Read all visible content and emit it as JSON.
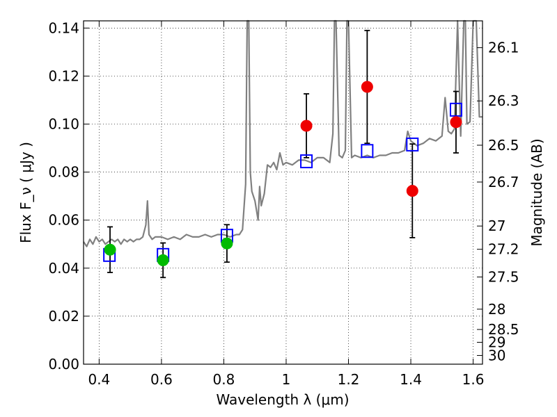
{
  "chart_data": {
    "type": "scatter",
    "title": "",
    "xlabel": "Wavelength  λ (μm)",
    "ylabel": "Flux  F_ν  ( μJy )",
    "y2label": "Magnitude (AB)",
    "xlim": [
      0.35,
      1.63
    ],
    "ylim": [
      0.0,
      0.143
    ],
    "grid": true,
    "x_ticks": [
      0.4,
      0.6,
      0.8,
      1.0,
      1.2,
      1.4,
      1.6
    ],
    "x_tick_labels": [
      "0.4",
      "0.6",
      "0.8",
      "1",
      "1.2",
      "1.4",
      "1.6"
    ],
    "y_ticks": [
      0.0,
      0.02,
      0.04,
      0.06,
      0.08,
      0.1,
      0.12,
      0.14
    ],
    "y_tick_labels": [
      "0.00",
      "0.02",
      "0.04",
      "0.06",
      "0.08",
      "0.10",
      "0.12",
      "0.14"
    ],
    "y2_tick_labels": [
      "26.1",
      "26.3",
      "26.5",
      "26.7",
      "27",
      "27.2",
      "27.5",
      "28",
      "28.5",
      "29",
      "30"
    ],
    "y2_tick_values": [
      26.1,
      26.3,
      26.5,
      26.7,
      27.0,
      27.2,
      27.5,
      28.0,
      28.5,
      29.0,
      30.0
    ],
    "colors": {
      "spectrum": "#808080",
      "model_boxes": "#0000ff",
      "detections_optical": "#00bb00",
      "detections_nir": "#ee0000",
      "errorbars": "#000000"
    },
    "series": [
      {
        "kind": "spectrum",
        "x": [
          0.35,
          0.36,
          0.37,
          0.38,
          0.39,
          0.4,
          0.41,
          0.42,
          0.43,
          0.44,
          0.45,
          0.46,
          0.47,
          0.48,
          0.49,
          0.5,
          0.51,
          0.52,
          0.53,
          0.54,
          0.55,
          0.555,
          0.56,
          0.57,
          0.58,
          0.6,
          0.62,
          0.64,
          0.66,
          0.68,
          0.7,
          0.72,
          0.74,
          0.76,
          0.78,
          0.8,
          0.82,
          0.84,
          0.85,
          0.86,
          0.87,
          0.875,
          0.88,
          0.885,
          0.89,
          0.9,
          0.91,
          0.915,
          0.92,
          0.93,
          0.94,
          0.95,
          0.96,
          0.97,
          0.98,
          0.99,
          1.0,
          1.02,
          1.04,
          1.06,
          1.08,
          1.1,
          1.12,
          1.14,
          1.15,
          1.155,
          1.16,
          1.17,
          1.18,
          1.19,
          1.195,
          1.2,
          1.21,
          1.22,
          1.24,
          1.26,
          1.28,
          1.3,
          1.32,
          1.34,
          1.36,
          1.38,
          1.39,
          1.4,
          1.42,
          1.44,
          1.46,
          1.48,
          1.49,
          1.5,
          1.51,
          1.52,
          1.53,
          1.54,
          1.55,
          1.56,
          1.57,
          1.575,
          1.58,
          1.59,
          1.6,
          1.61,
          1.62,
          1.63
        ],
        "y": [
          0.051,
          0.049,
          0.052,
          0.05,
          0.053,
          0.051,
          0.052,
          0.05,
          0.051,
          0.052,
          0.051,
          0.052,
          0.05,
          0.052,
          0.051,
          0.052,
          0.051,
          0.052,
          0.052,
          0.053,
          0.058,
          0.068,
          0.054,
          0.052,
          0.053,
          0.053,
          0.052,
          0.053,
          0.052,
          0.054,
          0.053,
          0.053,
          0.054,
          0.053,
          0.054,
          0.054,
          0.053,
          0.054,
          0.054,
          0.056,
          0.075,
          0.143,
          0.143,
          0.08,
          0.072,
          0.068,
          0.06,
          0.074,
          0.066,
          0.071,
          0.083,
          0.082,
          0.084,
          0.081,
          0.088,
          0.083,
          0.084,
          0.083,
          0.085,
          0.085,
          0.084,
          0.086,
          0.086,
          0.084,
          0.096,
          0.143,
          0.143,
          0.087,
          0.086,
          0.089,
          0.143,
          0.143,
          0.086,
          0.087,
          0.086,
          0.087,
          0.086,
          0.087,
          0.087,
          0.088,
          0.088,
          0.089,
          0.097,
          0.093,
          0.091,
          0.092,
          0.094,
          0.093,
          0.094,
          0.095,
          0.111,
          0.097,
          0.096,
          0.098,
          0.143,
          0.095,
          0.143,
          0.143,
          0.1,
          0.101,
          0.143,
          0.143,
          0.103,
          0.103
        ]
      },
      {
        "kind": "model_boxes",
        "x": [
          0.433,
          0.605,
          0.81,
          1.065,
          1.26,
          1.405,
          1.545
        ],
        "y": [
          0.0455,
          0.0455,
          0.0535,
          0.0845,
          0.0888,
          0.0915,
          0.106
        ]
      },
      {
        "kind": "points_green",
        "x": [
          0.435,
          0.605,
          0.81
        ],
        "y": [
          0.0477,
          0.0433,
          0.0503
        ],
        "err": [
          0.0095,
          0.0072,
          0.0078
        ]
      },
      {
        "kind": "points_red",
        "x": [
          1.065,
          1.26,
          1.405,
          1.545
        ],
        "y": [
          0.0993,
          0.1155,
          0.0722,
          0.1008
        ],
        "err": [
          0.0133,
          0.0235,
          0.0195,
          0.0128
        ]
      }
    ]
  }
}
